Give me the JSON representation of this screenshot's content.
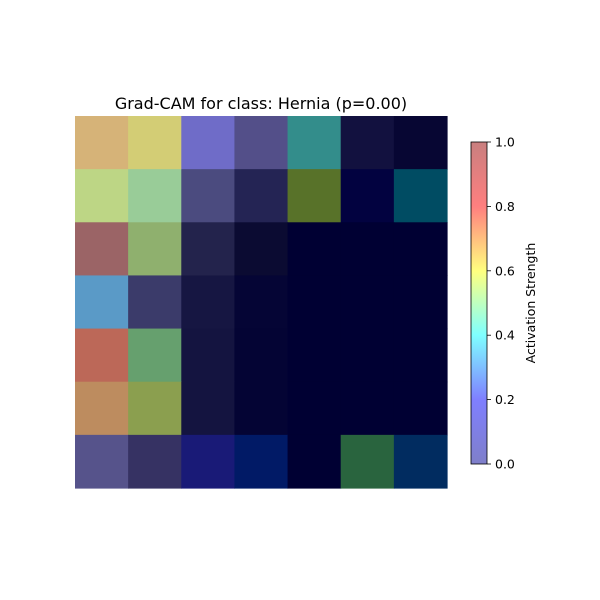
{
  "chart_data": {
    "type": "heatmap",
    "title": "Grad-CAM for class: Hernia (p=0.00)",
    "rows": 7,
    "cols": 7,
    "cells": [
      [
        "#d6b378",
        "#d3cd75",
        "#6f6cc8",
        "#534f89",
        "#338d8b",
        "#12113f",
        "#070633"
      ],
      [
        "#bdd685",
        "#99cc98",
        "#4b4b7f",
        "#242454",
        "#587229",
        "#020240",
        "#004c63"
      ],
      [
        "#9b6466",
        "#8fb06e",
        "#23234c",
        "#0b0b32",
        "#000033",
        "#000033",
        "#000033"
      ],
      [
        "#5a9ac7",
        "#3b3b6a",
        "#161642",
        "#050535",
        "#000033",
        "#000033",
        "#000033"
      ],
      [
        "#bc6858",
        "#66a06e",
        "#141440",
        "#040434",
        "#000033",
        "#000033",
        "#000033"
      ],
      [
        "#bd8c5f",
        "#8b9f4f",
        "#141440",
        "#040434",
        "#000033",
        "#000033",
        "#000033"
      ],
      [
        "#56538b",
        "#363263",
        "#191a77",
        "#011a66",
        "#000033",
        "#29643e",
        "#012c60"
      ]
    ],
    "colorbar": {
      "label": "Activation Strength",
      "ticks": [
        "0.0",
        "0.2",
        "0.4",
        "0.6",
        "0.8",
        "1.0"
      ],
      "tick_values": [
        0.0,
        0.2,
        0.4,
        0.6,
        0.8,
        1.0
      ],
      "range": [
        0.0,
        1.0
      ],
      "colormap_stops": [
        "#7f7fc9",
        "#7f7fff",
        "#7fffff",
        "#ffff7f",
        "#ff7f7f",
        "#c97f7f"
      ]
    }
  }
}
